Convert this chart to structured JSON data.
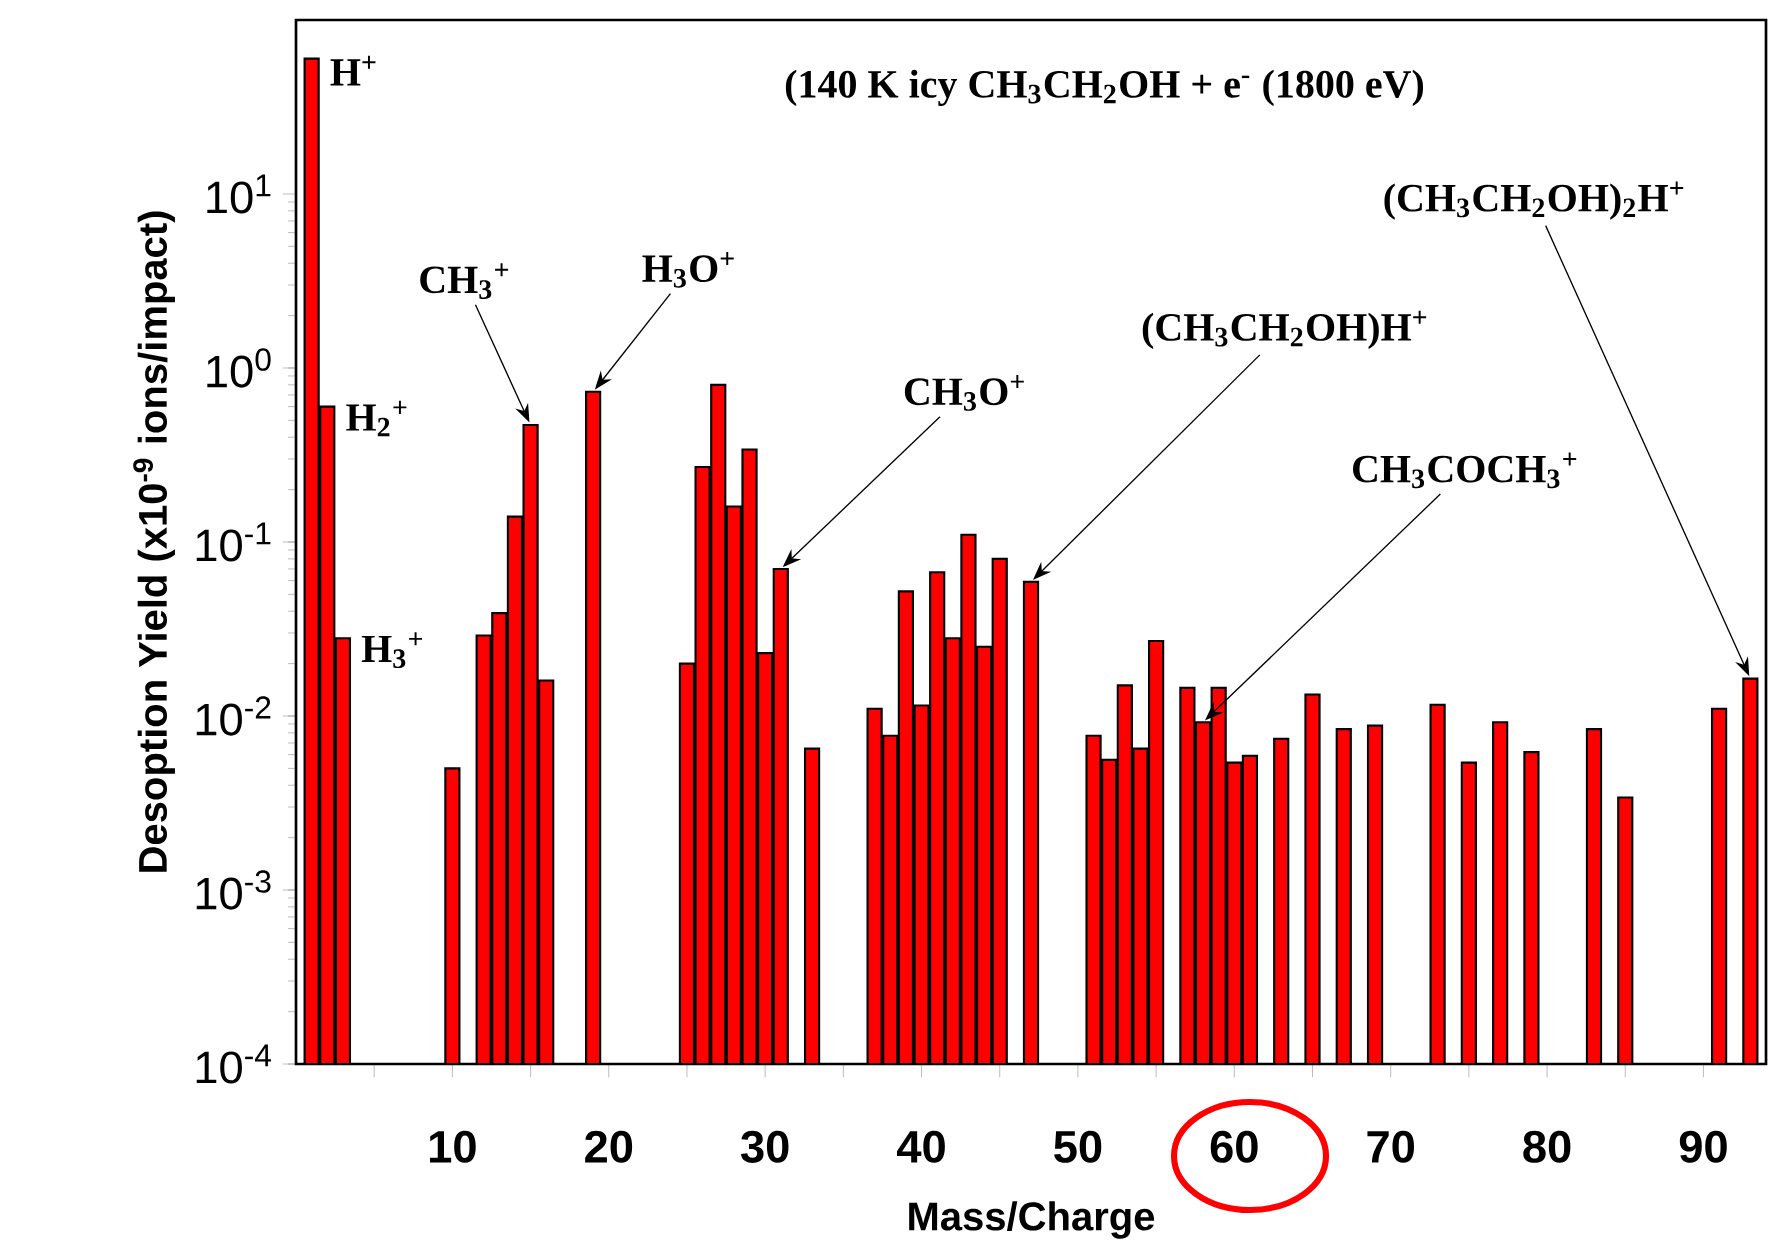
{
  "chart_data": {
    "type": "bar",
    "title": "(140 K icy CH$_{3}$CH$_{2}$OH + e$^{-}$ (1800 eV)",
    "xlabel": "Mass/Charge",
    "ylabel": "Desoption Yield (x10$^{-9}$ ions/impact)",
    "color": "#ff0000",
    "log": "y",
    "x": [
      1,
      2,
      3,
      10,
      12,
      13,
      14,
      15,
      16,
      19,
      25,
      26,
      27,
      28,
      29,
      30,
      31,
      33,
      37,
      38,
      39,
      40,
      41,
      42,
      43,
      44,
      45,
      47,
      51,
      52,
      53,
      54,
      55,
      57,
      58,
      59,
      60,
      61,
      63,
      65,
      67,
      69,
      73,
      75,
      77,
      79,
      83,
      85,
      91,
      93
    ],
    "values": [
      60,
      0.6,
      0.028,
      0.005,
      0.029,
      0.039,
      0.14,
      0.47,
      0.016,
      0.73,
      0.02,
      0.27,
      0.8,
      0.16,
      0.34,
      0.023,
      0.07,
      0.0065,
      0.011,
      0.0077,
      0.052,
      0.0115,
      0.067,
      0.028,
      0.11,
      0.025,
      0.08,
      0.059,
      0.0077,
      0.0056,
      0.015,
      0.0065,
      0.027,
      0.0145,
      0.0092,
      0.0145,
      0.0054,
      0.0059,
      0.0074,
      0.0133,
      0.0084,
      0.0088,
      0.0116,
      0.0054,
      0.0092,
      0.0062,
      0.0084,
      0.0034,
      0.011,
      0.0164
    ],
    "xlim": [
      0,
      94
    ],
    "ylim": [
      0.0001,
      100
    ],
    "xticks": [
      {
        "value": 5,
        "label": null
      },
      10,
      {
        "value": 15,
        "label": null
      },
      20,
      {
        "value": 25,
        "label": null
      },
      30,
      {
        "value": 35,
        "label": null
      },
      40,
      {
        "value": 45,
        "label": null
      },
      50,
      {
        "value": 55,
        "label": null
      },
      60,
      {
        "value": 65,
        "label": null
      },
      70,
      {
        "value": 75,
        "label": null
      },
      80,
      {
        "value": 85,
        "label": null
      },
      90
    ],
    "yticks": [
      {
        "value": 0.0001,
        "label": "10$^{-4}$"
      },
      {
        "value": 0.001,
        "label": "10$^{-3}$"
      },
      {
        "value": 0.01,
        "label": "10$^{-2}$"
      },
      {
        "value": 0.1,
        "label": "10$^{-1}$"
      },
      {
        "value": 1,
        "label": "10$^{0}$"
      },
      {
        "value": 10,
        "label": "10$^{1}$"
      }
    ],
    "annotations": [
      {
        "text": "H$^{+}$",
        "x": 1,
        "y": 60
      },
      {
        "text": "H$_{2}$$^{+}$",
        "x": 2,
        "y": 0.6
      },
      {
        "text": "H$_{3}$$^{+}$",
        "x": 3,
        "y": 0.028
      },
      {
        "text": "CH$_{3}$$^{+}$",
        "x": 15,
        "y": 0.47
      },
      {
        "text": "H$_{3}$O$^{+}$",
        "x": 19,
        "y": 0.73
      },
      {
        "text": "CH$_{3}$O$^{+}$",
        "x": 31,
        "y": 0.07
      },
      {
        "text": "(CH$_{3}$CH$_{2}$OH)H$^{+}$",
        "x": 47,
        "y": 0.059
      },
      {
        "text": "CH$_{3}$COCH$_{3}$$^{+}$",
        "x": 58,
        "y": 0.0092
      },
      {
        "text": "(CH$_{3}$CH$_{2}$OH)$_{2}$H$^{+}$",
        "x": 93,
        "y": 0.0164
      }
    ]
  }
}
